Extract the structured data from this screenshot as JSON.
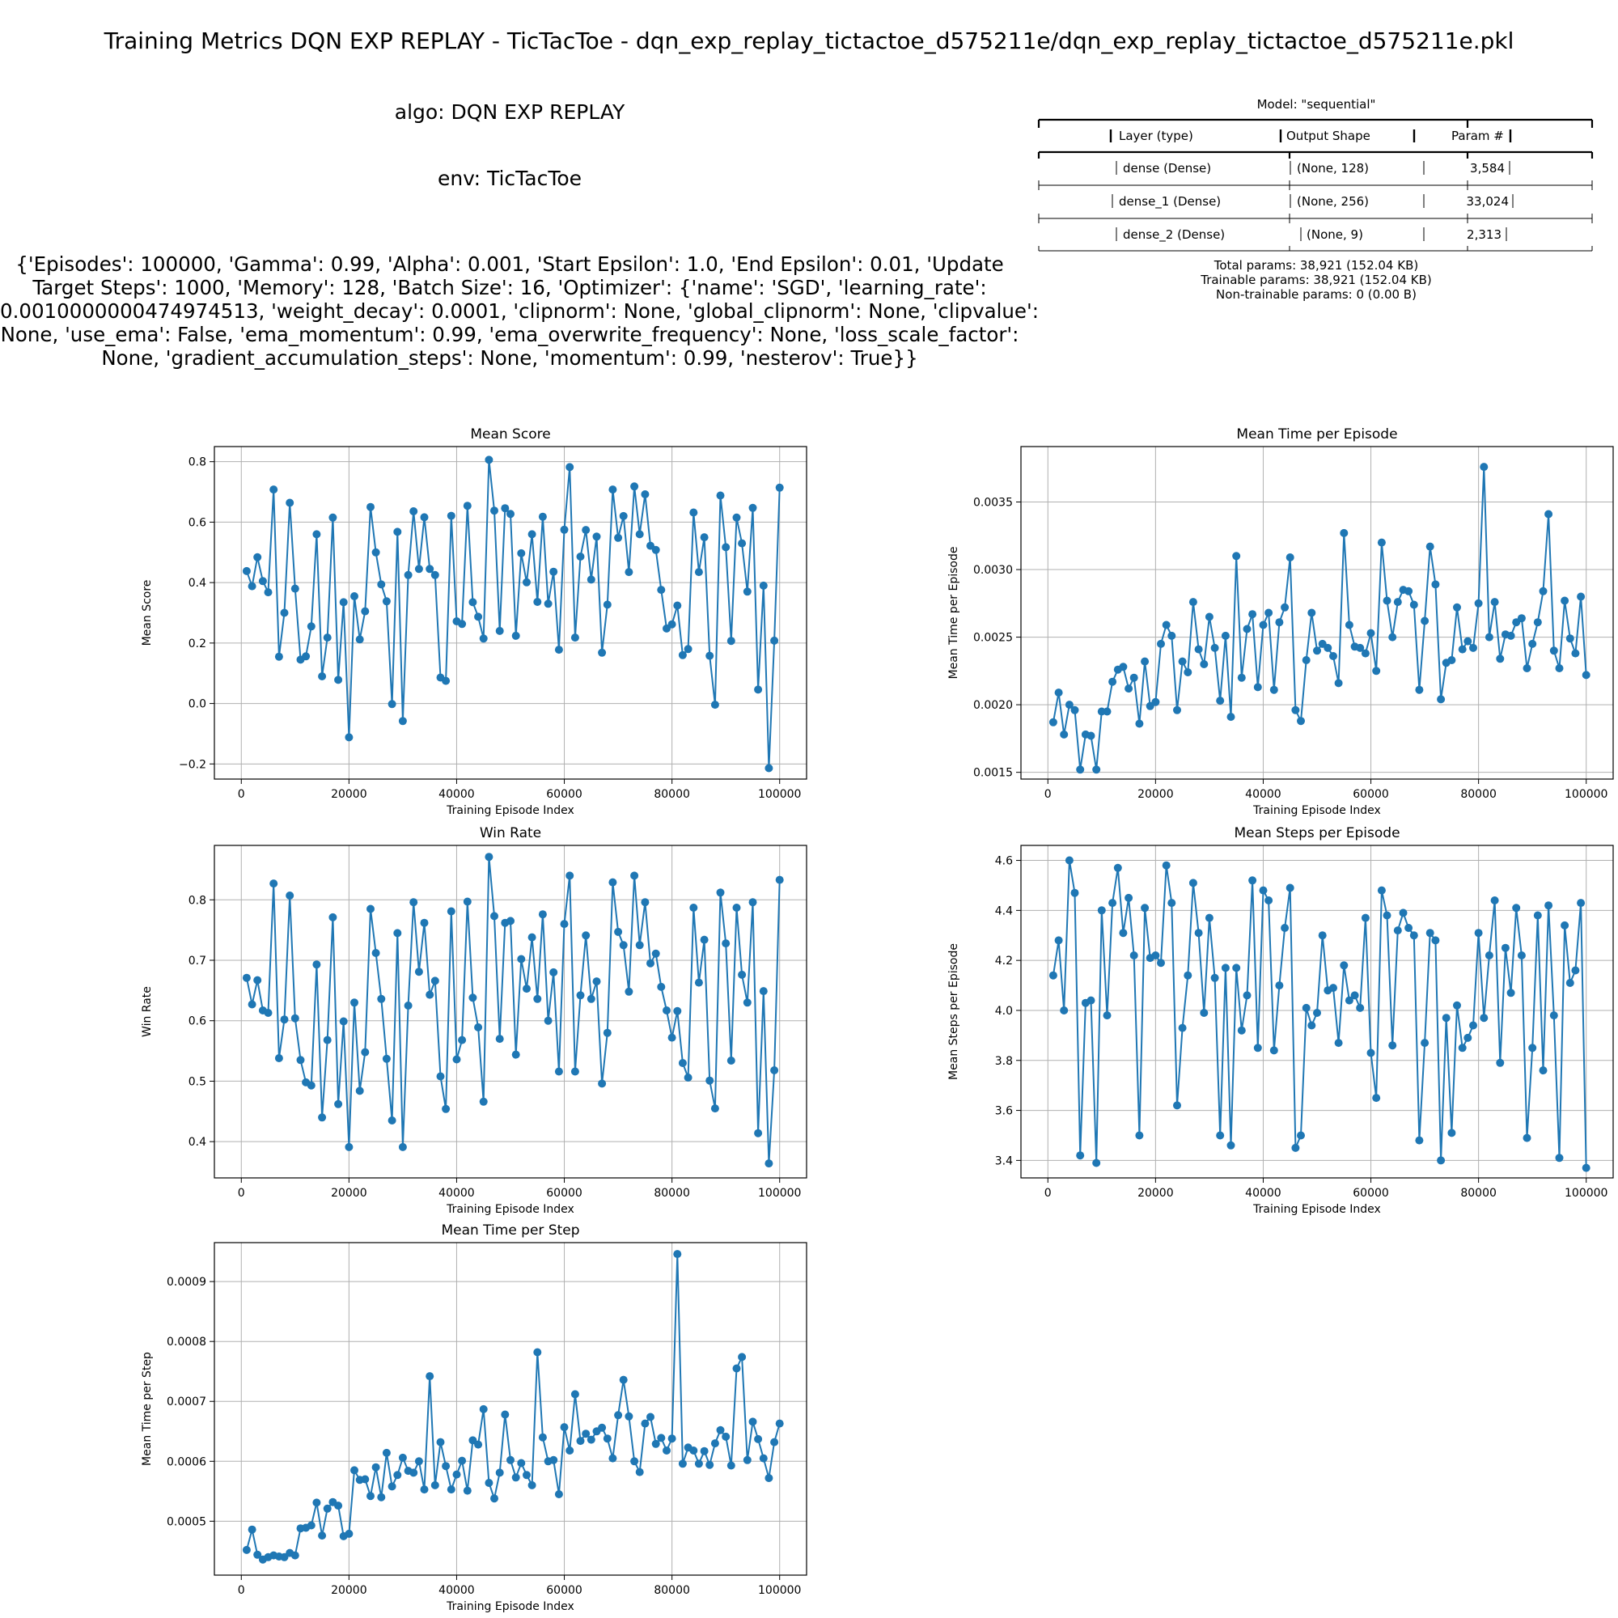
{
  "suptitle": "Training Metrics DQN EXP REPLAY - TicTacToe - dqn_exp_replay_tictactoe_d575211e/dqn_exp_replay_tictactoe_d575211e.pkl",
  "info": {
    "algo": "algo: DQN EXP REPLAY",
    "env": "env: TicTacToe",
    "params_lines": [
      "{'Episodes': 100000, 'Gamma': 0.99, 'Alpha': 0.001, 'Start Epsilon': 1.0, 'End Epsilon': 0.01, 'Update",
      "Target Steps': 1000, 'Memory': 128, 'Batch Size': 16, 'Optimizer': {'name': 'SGD', 'learning_rate':",
      "0.0010000000474974513, 'weight_decay': 0.0001, 'clipnorm': None, 'global_clipnorm': None, 'clipvalue':",
      "None, 'use_ema': False, 'ema_momentum': 0.99, 'ema_overwrite_frequency': None, 'loss_scale_factor':",
      "None, 'gradient_accumulation_steps': None, 'momentum': 0.99, 'nesterov': True}}"
    ]
  },
  "model": {
    "title": "Model: \"sequential\"",
    "headers": [
      "Layer (type)",
      "Output Shape",
      "Param #"
    ],
    "rows": [
      {
        "layer": "dense (Dense)",
        "shape": "(None, 128)",
        "params": "3,584"
      },
      {
        "layer": "dense_1 (Dense)",
        "shape": "(None, 256)",
        "params": "33,024"
      },
      {
        "layer": "dense_2 (Dense)",
        "shape": "(None, 9)",
        "params": "2,313"
      }
    ],
    "summary": [
      "Total params: 38,921 (152.04 KB)",
      "Trainable params: 38,921 (152.04 KB)",
      "Non-trainable params: 0 (0.00 B)"
    ]
  },
  "colors": {
    "series": "#1f77b4",
    "grid": "#b0b0b0",
    "axis": "#000000"
  },
  "chart_data": [
    {
      "type": "line",
      "title": "Mean Score",
      "xlabel": "Training Episode Index",
      "ylabel": "Mean Score",
      "xlim": [
        -5000,
        105000
      ],
      "ylim": [
        -0.25,
        0.85
      ],
      "xticks": [
        0,
        20000,
        40000,
        60000,
        80000,
        100000
      ],
      "yticks": [
        -0.2,
        0.0,
        0.2,
        0.4,
        0.6,
        0.8
      ],
      "ytick_labels": [
        "−0.2",
        "0.0",
        "0.2",
        "0.4",
        "0.6",
        "0.8"
      ],
      "grid": true,
      "x_start": 1000,
      "x_step": 1000,
      "values": [
        0.438,
        0.388,
        0.484,
        0.405,
        0.368,
        0.708,
        0.155,
        0.3,
        0.664,
        0.38,
        0.145,
        0.156,
        0.255,
        0.56,
        0.09,
        0.218,
        0.615,
        0.078,
        0.335,
        -0.112,
        0.355,
        0.212,
        0.305,
        0.65,
        0.5,
        0.394,
        0.338,
        -0.002,
        0.568,
        -0.058,
        0.425,
        0.636,
        0.445,
        0.616,
        0.445,
        0.425,
        0.086,
        0.075,
        0.621,
        0.272,
        0.263,
        0.654,
        0.335,
        0.287,
        0.215,
        0.806,
        0.638,
        0.24,
        0.646,
        0.627,
        0.224,
        0.497,
        0.401,
        0.56,
        0.336,
        0.618,
        0.33,
        0.436,
        0.178,
        0.575,
        0.782,
        0.218,
        0.486,
        0.574,
        0.41,
        0.552,
        0.168,
        0.327,
        0.708,
        0.548,
        0.62,
        0.435,
        0.718,
        0.56,
        0.692,
        0.522,
        0.508,
        0.376,
        0.248,
        0.262,
        0.324,
        0.16,
        0.18,
        0.632,
        0.435,
        0.55,
        0.158,
        -0.004,
        0.688,
        0.517,
        0.207,
        0.615,
        0.53,
        0.37,
        0.647,
        0.046,
        0.39,
        -0.214,
        0.208,
        0.714
      ]
    },
    {
      "type": "line",
      "title": "Mean Time per Episode",
      "xlabel": "Training Episode Index",
      "ylabel": "Mean Time per Episode",
      "xlim": [
        -5000,
        105000
      ],
      "ylim": [
        0.00145,
        0.00391
      ],
      "xticks": [
        0,
        20000,
        40000,
        60000,
        80000,
        100000
      ],
      "yticks": [
        0.0015,
        0.002,
        0.0025,
        0.003,
        0.0035
      ],
      "ytick_labels": [
        "0.0015",
        "0.0020",
        "0.0025",
        "0.0030",
        "0.0035"
      ],
      "grid": true,
      "x_start": 1000,
      "x_step": 1000,
      "values": [
        0.00187,
        0.00209,
        0.00178,
        0.002,
        0.00196,
        0.00152,
        0.00178,
        0.00177,
        0.00152,
        0.00195,
        0.00195,
        0.00217,
        0.00226,
        0.00228,
        0.00212,
        0.0022,
        0.00186,
        0.00232,
        0.00199,
        0.00202,
        0.00245,
        0.00259,
        0.00251,
        0.00196,
        0.00232,
        0.00224,
        0.00276,
        0.00241,
        0.0023,
        0.00265,
        0.00242,
        0.00203,
        0.00251,
        0.00191,
        0.0031,
        0.0022,
        0.00256,
        0.00267,
        0.00213,
        0.00259,
        0.00268,
        0.00211,
        0.00261,
        0.00272,
        0.00309,
        0.00196,
        0.00188,
        0.00233,
        0.00268,
        0.0024,
        0.00245,
        0.00242,
        0.00236,
        0.00216,
        0.00327,
        0.00259,
        0.00243,
        0.00242,
        0.00238,
        0.00253,
        0.00225,
        0.0032,
        0.00277,
        0.0025,
        0.00276,
        0.00285,
        0.00284,
        0.00274,
        0.00211,
        0.00262,
        0.00317,
        0.00289,
        0.00204,
        0.00231,
        0.00233,
        0.00272,
        0.00241,
        0.00247,
        0.00242,
        0.00275,
        0.00376,
        0.0025,
        0.00276,
        0.00234,
        0.00252,
        0.00251,
        0.00261,
        0.00264,
        0.00227,
        0.00245,
        0.00261,
        0.00284,
        0.00341,
        0.0024,
        0.00227,
        0.00277,
        0.00249,
        0.00238,
        0.0028,
        0.00222
      ]
    },
    {
      "type": "line",
      "title": "Win Rate",
      "xlabel": "Training Episode Index",
      "ylabel": "Win Rate",
      "xlim": [
        -5000,
        105000
      ],
      "ylim": [
        0.34,
        0.89
      ],
      "xticks": [
        0,
        20000,
        40000,
        60000,
        80000,
        100000
      ],
      "yticks": [
        0.4,
        0.5,
        0.6,
        0.7,
        0.8
      ],
      "ytick_labels": [
        "0.4",
        "0.5",
        "0.6",
        "0.7",
        "0.8"
      ],
      "grid": true,
      "x_start": 1000,
      "x_step": 1000,
      "values": [
        0.671,
        0.627,
        0.667,
        0.617,
        0.613,
        0.827,
        0.538,
        0.602,
        0.807,
        0.604,
        0.535,
        0.498,
        0.493,
        0.693,
        0.44,
        0.568,
        0.771,
        0.462,
        0.599,
        0.391,
        0.63,
        0.484,
        0.548,
        0.785,
        0.712,
        0.636,
        0.537,
        0.435,
        0.745,
        0.391,
        0.625,
        0.796,
        0.681,
        0.762,
        0.643,
        0.666,
        0.508,
        0.454,
        0.781,
        0.536,
        0.568,
        0.797,
        0.638,
        0.589,
        0.466,
        0.871,
        0.773,
        0.57,
        0.762,
        0.765,
        0.544,
        0.702,
        0.653,
        0.738,
        0.636,
        0.776,
        0.6,
        0.68,
        0.516,
        0.76,
        0.84,
        0.516,
        0.642,
        0.741,
        0.636,
        0.665,
        0.496,
        0.58,
        0.829,
        0.747,
        0.725,
        0.648,
        0.84,
        0.725,
        0.796,
        0.695,
        0.711,
        0.656,
        0.617,
        0.572,
        0.616,
        0.53,
        0.506,
        0.787,
        0.663,
        0.734,
        0.501,
        0.455,
        0.812,
        0.728,
        0.534,
        0.787,
        0.676,
        0.63,
        0.796,
        0.414,
        0.649,
        0.364,
        0.518,
        0.833
      ]
    },
    {
      "type": "line",
      "title": "Mean Steps per Episode",
      "xlabel": "Training Episode Index",
      "ylabel": "Mean Steps per Episode",
      "xlim": [
        -5000,
        105000
      ],
      "ylim": [
        3.33,
        4.66
      ],
      "xticks": [
        0,
        20000,
        40000,
        60000,
        80000,
        100000
      ],
      "yticks": [
        3.4,
        3.6,
        3.8,
        4.0,
        4.2,
        4.4,
        4.6
      ],
      "ytick_labels": [
        "3.4",
        "3.6",
        "3.8",
        "4.0",
        "4.2",
        "4.4",
        "4.6"
      ],
      "grid": true,
      "x_start": 1000,
      "x_step": 1000,
      "values": [
        4.14,
        4.28,
        4.0,
        4.6,
        4.47,
        3.42,
        4.03,
        4.04,
        3.39,
        4.4,
        3.98,
        4.43,
        4.57,
        4.31,
        4.45,
        4.22,
        3.5,
        4.41,
        4.21,
        4.22,
        4.19,
        4.58,
        4.43,
        3.62,
        3.93,
        4.14,
        4.51,
        4.31,
        3.99,
        4.37,
        4.13,
        3.5,
        4.17,
        3.46,
        4.17,
        3.92,
        4.06,
        4.52,
        3.85,
        4.48,
        4.44,
        3.84,
        4.1,
        4.33,
        4.49,
        3.45,
        3.5,
        4.01,
        3.94,
        3.99,
        4.3,
        4.08,
        4.09,
        3.87,
        4.18,
        4.04,
        4.06,
        4.01,
        4.37,
        3.83,
        3.65,
        4.48,
        4.38,
        3.86,
        4.32,
        4.39,
        4.33,
        4.3,
        3.48,
        3.87,
        4.31,
        4.28,
        3.4,
        3.97,
        3.51,
        4.02,
        3.85,
        3.89,
        3.94,
        4.31,
        3.97,
        4.22,
        4.44,
        3.79,
        4.25,
        4.07,
        4.41,
        4.22,
        3.49,
        3.85,
        4.38,
        3.76,
        4.42,
        3.98,
        3.41,
        4.34,
        4.11,
        4.16,
        4.43,
        3.37
      ]
    },
    {
      "type": "line",
      "title": "Mean Time per Step",
      "xlabel": "Training Episode Index",
      "ylabel": "Mean Time per Step",
      "xlim": [
        -5000,
        105000
      ],
      "ylim": [
        0.00041,
        0.000965
      ],
      "xticks": [
        0,
        20000,
        40000,
        60000,
        80000,
        100000
      ],
      "yticks": [
        0.0005,
        0.0006,
        0.0007,
        0.0008,
        0.0009
      ],
      "ytick_labels": [
        "0.0005",
        "0.0006",
        "0.0007",
        "0.0008",
        "0.0009"
      ],
      "grid": true,
      "x_start": 1000,
      "x_step": 1000,
      "values": [
        0.000452,
        0.000486,
        0.000444,
        0.000436,
        0.00044,
        0.000443,
        0.000441,
        0.00044,
        0.000447,
        0.000443,
        0.000488,
        0.000489,
        0.000493,
        0.000531,
        0.000476,
        0.000521,
        0.000532,
        0.000526,
        0.000475,
        0.000479,
        0.000585,
        0.000569,
        0.00057,
        0.000542,
        0.00059,
        0.00054,
        0.000614,
        0.000558,
        0.000577,
        0.000606,
        0.000584,
        0.000581,
        0.0006,
        0.000553,
        0.000742,
        0.00056,
        0.000632,
        0.000592,
        0.000553,
        0.000578,
        0.000601,
        0.000551,
        0.000635,
        0.000628,
        0.000687,
        0.000564,
        0.000538,
        0.000581,
        0.000678,
        0.000602,
        0.000573,
        0.000597,
        0.000577,
        0.00056,
        0.000782,
        0.00064,
        0.0006,
        0.000602,
        0.000545,
        0.000657,
        0.000618,
        0.000712,
        0.000634,
        0.000646,
        0.000636,
        0.00065,
        0.000656,
        0.000638,
        0.000605,
        0.000677,
        0.000736,
        0.000675,
        0.0006,
        0.000582,
        0.000663,
        0.000674,
        0.000629,
        0.000639,
        0.000618,
        0.000638,
        0.000946,
        0.000596,
        0.000623,
        0.000618,
        0.000596,
        0.000617,
        0.000594,
        0.00063,
        0.000652,
        0.000641,
        0.000593,
        0.000755,
        0.000774,
        0.000602,
        0.000666,
        0.000637,
        0.000605,
        0.000572,
        0.000632,
        0.000663
      ]
    }
  ]
}
